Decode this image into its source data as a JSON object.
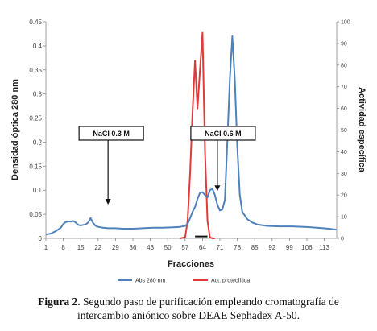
{
  "chart_data": {
    "type": "line",
    "xlabel": "Fracciones",
    "ylabel_left": "Densidad óptica 280 nm",
    "ylabel_right": "Actividad específica",
    "ylim_left": [
      0,
      0.45
    ],
    "ylim_right": [
      0,
      100
    ],
    "xlim": [
      1,
      118
    ],
    "left_ticks": [
      "0",
      "0.05",
      "0.1",
      "0.15",
      "0.2",
      "0.25",
      "0.3",
      "0.35",
      "0.4",
      "0.45"
    ],
    "right_ticks": [
      "0",
      "10",
      "20",
      "30",
      "40",
      "50",
      "60",
      "70",
      "80",
      "90",
      "100"
    ],
    "x_ticks": [
      "1",
      "8",
      "15",
      "22",
      "29",
      "36",
      "43",
      "50",
      "57",
      "64",
      "71",
      "78",
      "85",
      "92",
      "99",
      "106",
      "113"
    ],
    "grid": false,
    "legend_position": "bottom",
    "series": [
      {
        "name": "Abs 280 nm",
        "color": "#4f81bd",
        "axis": "left",
        "x": [
          1,
          3,
          5,
          7,
          8,
          9,
          10,
          11,
          12,
          13,
          14,
          15,
          16,
          17,
          18,
          19,
          20,
          21,
          22,
          24,
          26,
          29,
          32,
          36,
          40,
          44,
          48,
          52,
          55,
          57,
          58,
          59,
          60,
          61,
          62,
          63,
          64,
          65,
          66,
          67,
          68,
          69,
          70,
          71,
          72,
          73,
          74,
          75,
          76,
          77,
          78,
          79,
          80,
          82,
          84,
          86,
          90,
          95,
          100,
          105,
          110,
          115,
          118
        ],
        "y": [
          0.008,
          0.01,
          0.015,
          0.022,
          0.03,
          0.034,
          0.035,
          0.035,
          0.036,
          0.033,
          0.028,
          0.027,
          0.028,
          0.029,
          0.033,
          0.042,
          0.032,
          0.026,
          0.024,
          0.022,
          0.021,
          0.021,
          0.02,
          0.02,
          0.021,
          0.022,
          0.022,
          0.023,
          0.024,
          0.026,
          0.03,
          0.042,
          0.055,
          0.065,
          0.082,
          0.095,
          0.096,
          0.09,
          0.085,
          0.1,
          0.103,
          0.09,
          0.07,
          0.058,
          0.06,
          0.08,
          0.2,
          0.33,
          0.42,
          0.33,
          0.19,
          0.09,
          0.055,
          0.04,
          0.033,
          0.029,
          0.026,
          0.025,
          0.025,
          0.024,
          0.022,
          0.02,
          0.018
        ]
      },
      {
        "name": "Act. proteolítica",
        "color": "#e03b3b",
        "axis": "right",
        "x": [
          55,
          57,
          58,
          59,
          60,
          61,
          62,
          63,
          64,
          65,
          66,
          67,
          68,
          69
        ],
        "y": [
          0,
          0.5,
          8,
          30,
          58,
          82,
          60,
          78,
          95,
          40,
          8,
          0.5,
          0,
          0
        ]
      }
    ],
    "annotations": [
      {
        "text": "NaCl 0.3 M",
        "arrow_x": 26,
        "arrow_y": 0.072
      },
      {
        "text": "NaCl 0.6 M",
        "arrow_x": 70,
        "arrow_y": 0.1
      }
    ],
    "marker": {
      "x_start": 61,
      "x_end": 66,
      "y": 0.004
    }
  },
  "caption": {
    "label": "Figura 2.",
    "line1": "Segundo paso de purificación empleando cromatografía de",
    "line2": "intercambio aniónico sobre DEAE Sephadex A-50."
  }
}
